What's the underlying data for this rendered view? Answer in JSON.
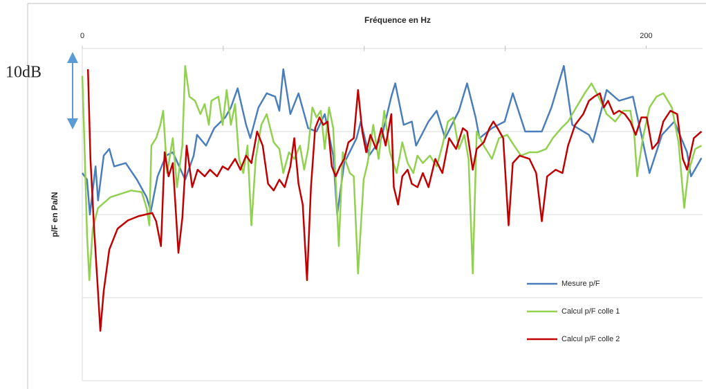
{
  "chart_data": {
    "type": "line",
    "xlabel": "Fréquence en Hz",
    "ylabel": "p/F en Pa/N",
    "xlim": [
      0,
      220
    ],
    "xticks": [
      0,
      200
    ],
    "x_minor_ticks": [
      50,
      100,
      150
    ],
    "ylim": [
      -40,
      0
    ],
    "ygrid": [
      -40,
      -30,
      -20,
      -10,
      0
    ],
    "annotation": {
      "text": "10dB",
      "from": 0,
      "to": -10,
      "color": "#5b9bd5"
    },
    "legend_position": "lower right",
    "series": [
      {
        "name": "Mesure p/F",
        "color": "#4a7ebb",
        "x": [
          0,
          1.7,
          2.7,
          4.7,
          5.6,
          7.6,
          9.6,
          11.3,
          15.4,
          19.4,
          22.8,
          24.3,
          26.7,
          29.7,
          32.1,
          36.5,
          39.5,
          40.7,
          43.9,
          46.8,
          50.7,
          52.7,
          55.1,
          58.1,
          59.6,
          62.5,
          65.4,
          68.4,
          69.9,
          71.3,
          73.8,
          76.7,
          80.1,
          83.1,
          86.0,
          89.0,
          90.4,
          92.9,
          97.3,
          98.8,
          101.7,
          106.1,
          109.6,
          111.0,
          114.0,
          116.9,
          118.4,
          122.8,
          125.7,
          128.7,
          133.6,
          136.5,
          139.5,
          140.9,
          145.3,
          149.8,
          152.7,
          157.1,
          163.0,
          166.4,
          170.8,
          173.8,
          179.7,
          181.1,
          186.0,
          190.4,
          195.3,
          198.3,
          201.2,
          205.6,
          210.0,
          214.5,
          215.9,
          219.6
        ],
        "values": [
          -15.0,
          -15.8,
          -20.0,
          -14.2,
          -18.3,
          -12.9,
          -12.1,
          -14.2,
          -13.8,
          -15.8,
          -17.9,
          -19.6,
          -15.4,
          -12.9,
          -12.5,
          -15.8,
          -12.9,
          -10.4,
          -11.7,
          -9.6,
          -8.3,
          -7.1,
          -4.8,
          -9.2,
          -10.8,
          -7.1,
          -5.4,
          -5.8,
          -7.5,
          -2.5,
          -7.9,
          -5.4,
          -9.6,
          -10.0,
          -7.9,
          -12.9,
          -20.0,
          -13.8,
          -10.8,
          -8.8,
          -12.9,
          -10.8,
          -5.8,
          -4.2,
          -9.2,
          -8.8,
          -11.7,
          -8.8,
          -7.5,
          -10.8,
          -7.5,
          -4.2,
          -8.3,
          -10.8,
          -9.6,
          -8.8,
          -5.4,
          -10.0,
          -10.0,
          -7.1,
          -2.1,
          -9.2,
          -10.4,
          -11.3,
          -5.0,
          -6.3,
          -5.8,
          -10.4,
          -15.0,
          -10.4,
          -8.8,
          -12.5,
          -15.4,
          -13.2
        ]
      },
      {
        "name": "Calcul p/F colle 1",
        "color": "#92d050",
        "x": [
          0,
          0.7,
          1.7,
          2.5,
          3.7,
          5.6,
          10.0,
          17.4,
          21.1,
          22.8,
          23.8,
          24.5,
          26.2,
          27.7,
          28.7,
          30.1,
          32.1,
          33.6,
          35.5,
          36.5,
          38.0,
          40.0,
          41.9,
          43.4,
          44.9,
          45.8,
          48.3,
          49.8,
          51.2,
          52.7,
          54.2,
          55.6,
          57.1,
          58.6,
          60.0,
          61.5,
          63.5,
          65.4,
          67.9,
          69.9,
          71.3,
          73.3,
          75.2,
          77.2,
          78.7,
          80.1,
          81.6,
          83.1,
          84.6,
          86.0,
          87.5,
          89.0,
          91.0,
          92.4,
          94.9,
          96.3,
          97.8,
          99.8,
          101.2,
          103.2,
          105.1,
          107.1,
          109.1,
          111.5,
          113.5,
          115.4,
          117.4,
          118.9,
          120.8,
          123.3,
          125.7,
          127.7,
          129.7,
          131.6,
          133.6,
          135.5,
          137.0,
          138.5,
          139.9,
          142.4,
          145.3,
          147.8,
          150.7,
          153.2,
          155.6,
          158.6,
          161.5,
          164.5,
          166.9,
          169.9,
          172.3,
          175.2,
          178.2,
          180.6,
          183.1,
          186.0,
          189.0,
          191.9,
          194.4,
          195.8,
          196.8,
          198.8,
          201.2,
          203.7,
          206.1,
          209.1,
          211.5,
          213.5,
          214.9,
          217.4,
          219.6
        ],
        "values": [
          -3.3,
          -10.8,
          -22.5,
          -27.9,
          -21.7,
          -19.2,
          -17.9,
          -17.1,
          -17.3,
          -19.2,
          -21.3,
          -11.7,
          -10.8,
          -9.2,
          -7.5,
          -15.0,
          -10.8,
          -16.7,
          -11.7,
          -2.1,
          -5.8,
          -6.3,
          -7.9,
          -6.7,
          -9.2,
          -6.3,
          -5.8,
          -9.2,
          -5.0,
          -9.2,
          -6.7,
          -13.3,
          -15.0,
          -11.7,
          -21.3,
          -13.3,
          -9.2,
          -7.9,
          -11.3,
          -12.1,
          -15.0,
          -12.5,
          -13.3,
          -11.7,
          -14.6,
          -12.1,
          -7.1,
          -8.3,
          -7.5,
          -12.1,
          -7.1,
          -9.6,
          -23.8,
          -12.5,
          -15.0,
          -15.4,
          -27.1,
          -15.8,
          -13.8,
          -9.2,
          -13.3,
          -7.5,
          -12.5,
          -15.0,
          -11.3,
          -13.8,
          -15.0,
          -12.9,
          -13.8,
          -12.9,
          -14.2,
          -11.7,
          -8.8,
          -8.3,
          -12.1,
          -10.4,
          -13.3,
          -27.1,
          -10.0,
          -11.7,
          -13.3,
          -10.8,
          -10.4,
          -11.7,
          -12.9,
          -12.5,
          -12.5,
          -12.1,
          -10.8,
          -9.6,
          -8.8,
          -7.1,
          -5.4,
          -4.2,
          -5.8,
          -7.9,
          -8.8,
          -7.5,
          -7.5,
          -10.4,
          -15.4,
          -10.8,
          -7.1,
          -5.8,
          -5.4,
          -7.1,
          -11.3,
          -19.2,
          -15.0,
          -12.1,
          -11.7
        ]
      },
      {
        "name": "Calcul p/F colle 2",
        "color": "#c00000",
        "x": [
          2.0,
          2.9,
          4.2,
          5.4,
          6.4,
          7.6,
          9.6,
          12.5,
          16.2,
          19.9,
          24.8,
          26.2,
          27.9,
          29.2,
          30.6,
          32.1,
          34.1,
          35.5,
          37.0,
          39.0,
          40.9,
          43.4,
          45.3,
          47.8,
          49.8,
          51.7,
          54.2,
          56.1,
          58.1,
          60.0,
          62.0,
          64.0,
          65.9,
          67.9,
          69.9,
          71.8,
          73.8,
          75.2,
          76.7,
          78.2,
          79.7,
          81.1,
          82.6,
          84.1,
          85.5,
          87.0,
          88.5,
          89.9,
          91.4,
          92.9,
          94.4,
          96.3,
          97.8,
          99.3,
          100.7,
          102.2,
          104.2,
          106.1,
          107.6,
          109.6,
          110.5,
          112.0,
          113.5,
          115.4,
          116.9,
          118.9,
          120.8,
          122.8,
          125.2,
          127.7,
          130.1,
          132.6,
          135.0,
          136.5,
          138.5,
          139.9,
          142.4,
          144.4,
          145.8,
          147.3,
          149.3,
          151.2,
          152.7,
          155.1,
          158.6,
          161.0,
          163.0,
          164.9,
          167.9,
          170.3,
          172.3,
          174.8,
          177.7,
          179.7,
          181.6,
          183.6,
          185.0,
          186.5,
          188.5,
          190.4,
          192.4,
          194.4,
          196.3,
          198.3,
          200.2,
          202.2,
          204.2,
          206.1,
          208.6,
          211.0,
          213.0,
          214.5,
          216.9,
          219.6
        ],
        "values": [
          -2.5,
          -13.3,
          -21.7,
          -28.3,
          -34.0,
          -29.2,
          -24.2,
          -21.7,
          -20.7,
          -20.2,
          -19.8,
          -20.8,
          -23.8,
          -12.5,
          -15.4,
          -13.8,
          -24.6,
          -20.4,
          -11.7,
          -16.7,
          -14.6,
          -15.4,
          -14.6,
          -15.4,
          -14.2,
          -14.6,
          -13.3,
          -14.6,
          -12.9,
          -13.8,
          -10.0,
          -11.7,
          -16.3,
          -17.1,
          -15.8,
          -16.7,
          -14.2,
          -10.8,
          -16.3,
          -18.8,
          -27.9,
          -16.7,
          -9.6,
          -8.3,
          -9.2,
          -8.8,
          -14.2,
          -15.4,
          -14.2,
          -13.3,
          -11.3,
          -10.8,
          -5.0,
          -10.0,
          -12.5,
          -10.4,
          -12.1,
          -9.6,
          -11.7,
          -7.9,
          -16.7,
          -18.8,
          -15.4,
          -14.6,
          -16.3,
          -16.7,
          -15.0,
          -16.7,
          -13.3,
          -15.0,
          -10.8,
          -12.1,
          -9.6,
          -10.0,
          -14.6,
          -12.1,
          -11.3,
          -9.6,
          -8.8,
          -9.6,
          -10.8,
          -21.3,
          -13.8,
          -12.9,
          -13.3,
          -15.0,
          -20.8,
          -15.4,
          -14.6,
          -15.0,
          -11.7,
          -9.2,
          -7.9,
          -6.3,
          -5.8,
          -5.4,
          -7.1,
          -6.3,
          -7.9,
          -7.5,
          -7.9,
          -8.8,
          -10.4,
          -8.3,
          -8.3,
          -12.1,
          -11.3,
          -8.8,
          -7.5,
          -7.9,
          -13.3,
          -14.6,
          -10.8,
          -10.0
        ]
      }
    ]
  }
}
